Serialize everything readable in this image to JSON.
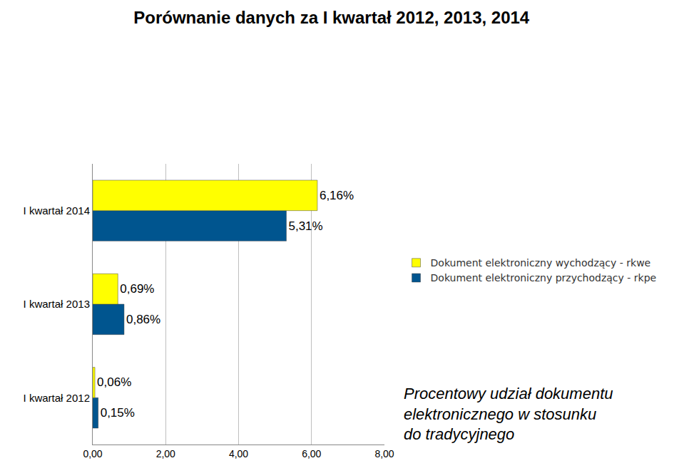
{
  "chart_data": {
    "type": "bar",
    "title": "Porównanie danych za I kwartał 2012, 2013, 2014",
    "orientation": "horizontal",
    "categories": [
      "I kwartał 2012",
      "I kwartał 2013",
      "I kwartał 2014"
    ],
    "series": [
      {
        "name": "Dokument elektroniczny wychodzący - rkwe",
        "color": "#ffff00",
        "values": [
          0.06,
          0.69,
          6.16
        ],
        "value_labels": [
          "0,06%",
          "0,69%",
          "6,16%"
        ]
      },
      {
        "name": "Dokument elektroniczny przychodzący - rkpe",
        "color": "#00558f",
        "values": [
          0.15,
          0.86,
          5.31
        ],
        "value_labels": [
          "0,15%",
          "0,86%",
          "5,31%"
        ]
      }
    ],
    "xlim": [
      0,
      8
    ],
    "xticks": [
      {
        "value": 0,
        "label": "0,00"
      },
      {
        "value": 2,
        "label": "2,00"
      },
      {
        "value": 4,
        "label": "4,00"
      },
      {
        "value": 6,
        "label": "6,00"
      },
      {
        "value": 8,
        "label": "8,00"
      }
    ],
    "grid": true,
    "data_labels": true,
    "legend": "right",
    "annotation": [
      "Procentowy udział dokumentu",
      "elektronicznego w stosunku",
      "do tradycyjnego"
    ]
  }
}
